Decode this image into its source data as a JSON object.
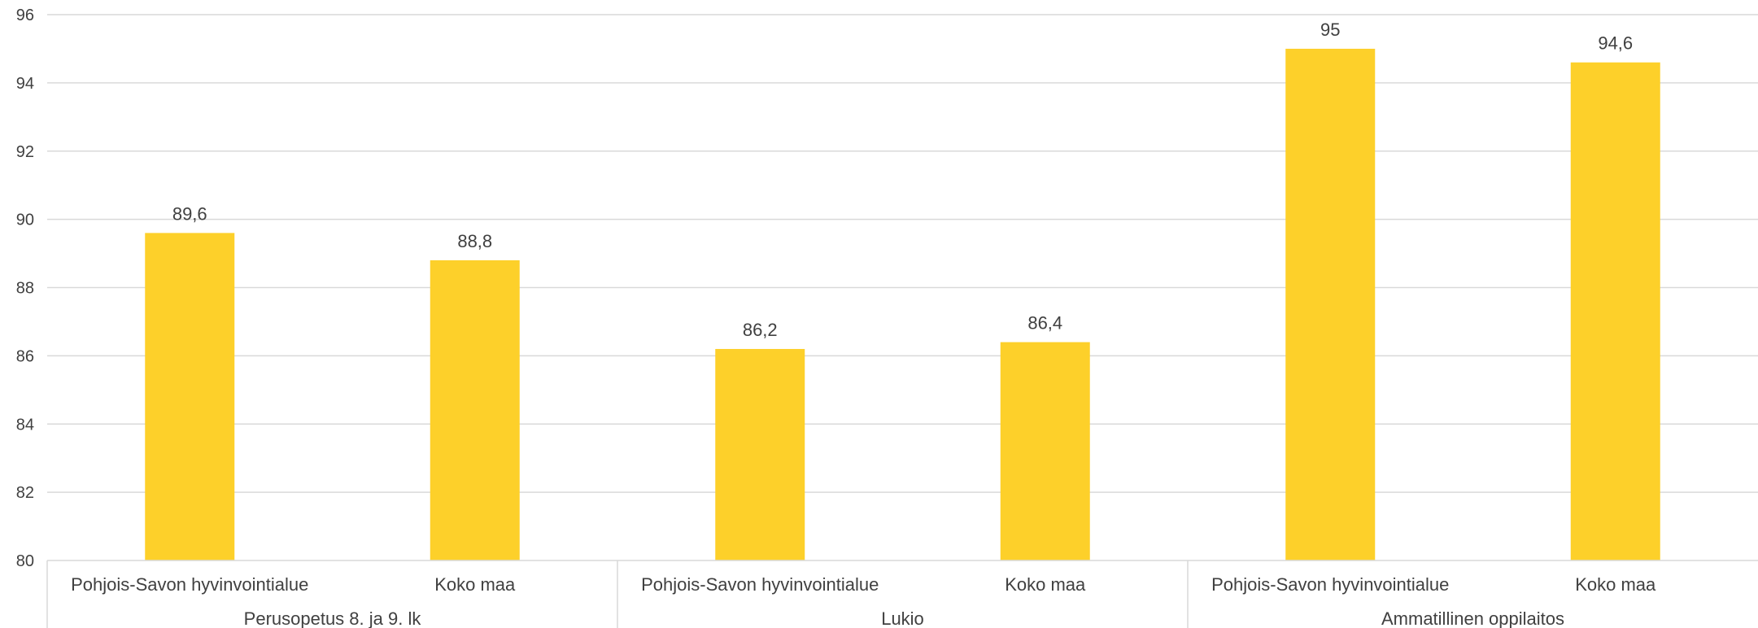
{
  "chart_data": {
    "type": "bar",
    "title": "",
    "xlabel": "",
    "ylabel": "",
    "ylim": [
      80,
      96
    ],
    "yticks": [
      80,
      82,
      84,
      86,
      88,
      90,
      92,
      94,
      96
    ],
    "grid": true,
    "bar_color": "#FDD02A",
    "groups": [
      {
        "label": "Perusopetus 8. ja 9. lk",
        "categories": [
          "Pohjois-Savon hyvinvointialue",
          "Koko maa"
        ],
        "values": [
          89.6,
          88.8
        ],
        "value_labels": [
          "89,6",
          "88,8"
        ]
      },
      {
        "label": "Lukio",
        "categories": [
          "Pohjois-Savon hyvinvointialue",
          "Koko maa"
        ],
        "values": [
          86.2,
          86.4
        ],
        "value_labels": [
          "86,2",
          "86,4"
        ]
      },
      {
        "label": "Ammatillinen oppilaitos",
        "categories": [
          "Pohjois-Savon hyvinvointialue",
          "Koko maa"
        ],
        "values": [
          95,
          94.6
        ],
        "value_labels": [
          "95",
          "94,6"
        ]
      }
    ]
  }
}
